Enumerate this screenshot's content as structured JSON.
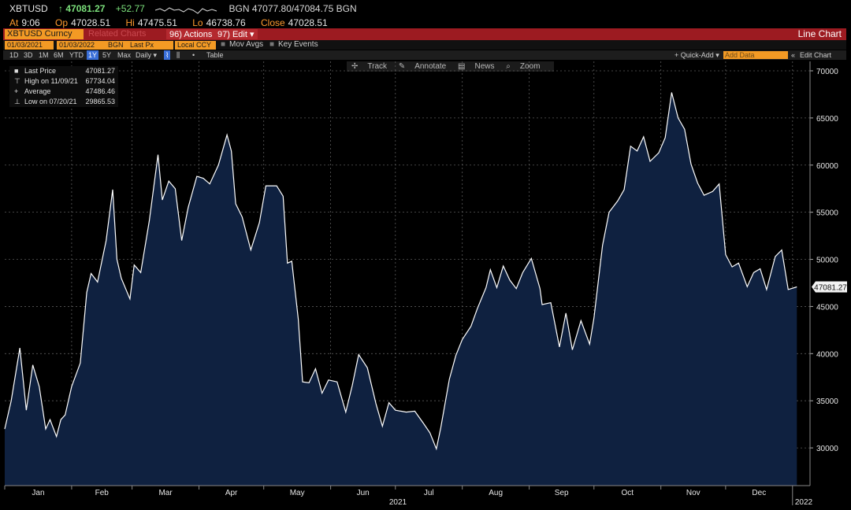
{
  "header": {
    "symbol": "XBTUSD",
    "last": "↑ 47081.27",
    "change": "+52.77",
    "quote": "BGN 47077.80/47084.75 BGN",
    "at_label": "At",
    "at_value": "9:06",
    "op_label": "Op",
    "op_value": "47028.51",
    "hi_label": "Hi",
    "hi_value": "47475.51",
    "lo_label": "Lo",
    "lo_value": "46738.76",
    "close_label": "Close",
    "close_value": "47028.51"
  },
  "toolbar": {
    "security": "XBTUSD Curncy",
    "ghost": "Related Charts",
    "actions": "96) Actions ▾",
    "edit": "97) Edit ▾",
    "chart_type": "Line Chart"
  },
  "controls": {
    "start_date": "01/03/2021",
    "end_date": "01/03/2022",
    "source": "BGN",
    "field": "Last Px",
    "currency": "Local CCY",
    "mov_avgs": "Mov Avgs",
    "key_events": "Key Events"
  },
  "range": {
    "buttons": [
      "1D",
      "3D",
      "1M",
      "6M",
      "YTD",
      "1Y",
      "5Y",
      "Max"
    ],
    "selected": "1Y",
    "frequency": "Daily ▾",
    "table": "Table",
    "quick_add": "+ Quick-Add ▾",
    "add_data": "Add Data",
    "edit_chart": "Edit Chart"
  },
  "chart_tools": [
    "Track",
    "Annotate",
    "News",
    "Zoom"
  ],
  "legend": [
    {
      "name": "Last Price",
      "value": "47081.27"
    },
    {
      "name": "High on 11/09/21",
      "value": "67734.04"
    },
    {
      "name": "Average",
      "value": "47486.46"
    },
    {
      "name": "Low on 07/20/21",
      "value": "29865.53"
    }
  ],
  "colors": {
    "fill": "#0f2140",
    "line": "#ffffff",
    "grid": "#5a5a5a",
    "accent": "#f39a24",
    "bar": "#9c1b21"
  },
  "chart_data": {
    "type": "area",
    "title": "",
    "xlabel": "2021",
    "ylabel": "",
    "ylim": [
      26000,
      71000
    ],
    "yticks": [
      30000,
      35000,
      40000,
      45000,
      50000,
      55000,
      60000,
      65000,
      70000
    ],
    "month_labels": [
      "Jan",
      "Feb",
      "Mar",
      "Apr",
      "May",
      "Jun",
      "Jul",
      "Aug",
      "Sep",
      "Oct",
      "Nov",
      "Dec"
    ],
    "year_end_label": "2022",
    "last_value_label": "47081.27",
    "grid": true,
    "x": [
      "2021-01-01",
      "2021-01-04",
      "2021-01-08",
      "2021-01-11",
      "2021-01-14",
      "2021-01-17",
      "2021-01-20",
      "2021-01-22",
      "2021-01-25",
      "2021-01-27",
      "2021-01-29",
      "2021-02-01",
      "2021-02-05",
      "2021-02-08",
      "2021-02-10",
      "2021-02-13",
      "2021-02-17",
      "2021-02-20",
      "2021-02-22",
      "2021-02-24",
      "2021-02-28",
      "2021-03-02",
      "2021-03-05",
      "2021-03-09",
      "2021-03-13",
      "2021-03-15",
      "2021-03-18",
      "2021-03-21",
      "2021-03-24",
      "2021-03-27",
      "2021-03-31",
      "2021-04-03",
      "2021-04-06",
      "2021-04-10",
      "2021-04-14",
      "2021-04-16",
      "2021-04-18",
      "2021-04-21",
      "2021-04-25",
      "2021-04-29",
      "2021-05-02",
      "2021-05-07",
      "2021-05-10",
      "2021-05-12",
      "2021-05-14",
      "2021-05-17",
      "2021-05-19",
      "2021-05-22",
      "2021-05-25",
      "2021-05-28",
      "2021-05-31",
      "2021-06-04",
      "2021-06-08",
      "2021-06-11",
      "2021-06-14",
      "2021-06-18",
      "2021-06-22",
      "2021-06-25",
      "2021-06-28",
      "2021-07-01",
      "2021-07-06",
      "2021-07-10",
      "2021-07-14",
      "2021-07-17",
      "2021-07-20",
      "2021-07-22",
      "2021-07-26",
      "2021-07-29",
      "2021-08-01",
      "2021-08-05",
      "2021-08-08",
      "2021-08-12",
      "2021-08-14",
      "2021-08-17",
      "2021-08-20",
      "2021-08-23",
      "2021-08-26",
      "2021-08-29",
      "2021-09-02",
      "2021-09-06",
      "2021-09-07",
      "2021-09-11",
      "2021-09-15",
      "2021-09-18",
      "2021-09-21",
      "2021-09-25",
      "2021-09-29",
      "2021-10-01",
      "2021-10-05",
      "2021-10-08",
      "2021-10-12",
      "2021-10-15",
      "2021-10-18",
      "2021-10-21",
      "2021-10-24",
      "2021-10-27",
      "2021-10-31",
      "2021-11-03",
      "2021-11-06",
      "2021-11-09",
      "2021-11-12",
      "2021-11-15",
      "2021-11-18",
      "2021-11-21",
      "2021-11-25",
      "2021-11-28",
      "2021-12-01",
      "2021-12-04",
      "2021-12-07",
      "2021-12-11",
      "2021-12-14",
      "2021-12-17",
      "2021-12-20",
      "2021-12-24",
      "2021-12-27",
      "2021-12-30",
      "2022-01-03"
    ],
    "series": [
      {
        "values": [
          32000,
          35000,
          40600,
          34000,
          38800,
          36500,
          32000,
          33000,
          31200,
          33000,
          33500,
          36500,
          39000,
          46500,
          48500,
          47600,
          52000,
          57400,
          50000,
          48000,
          45800,
          49400,
          48600,
          54100,
          61100,
          56300,
          58300,
          57500,
          52000,
          55500,
          58800,
          58600,
          58000,
          60000,
          63200,
          61500,
          55900,
          54500,
          51000,
          53900,
          57800,
          57800,
          56700,
          49600,
          49800,
          43700,
          37000,
          36900,
          38400,
          35800,
          37200,
          37000,
          33800,
          36600,
          39900,
          38500,
          34700,
          32300,
          34800,
          34000,
          33800,
          33900,
          32600,
          31600,
          29900,
          32100,
          37300,
          39800,
          41500,
          42900,
          44800,
          47000,
          48900,
          47000,
          49300,
          47800,
          46900,
          48600,
          50100,
          46900,
          45200,
          45400,
          40700,
          44300,
          40400,
          43500,
          41000,
          43800,
          51500,
          55000,
          56200,
          57400,
          62000,
          61500,
          63000,
          60400,
          61300,
          62900,
          67700,
          65000,
          63800,
          60100,
          58100,
          56800,
          57200,
          58000,
          50500,
          49200,
          49600,
          47100,
          48600,
          49000,
          46800,
          50300,
          51000,
          46800,
          47081.27
        ]
      }
    ]
  }
}
